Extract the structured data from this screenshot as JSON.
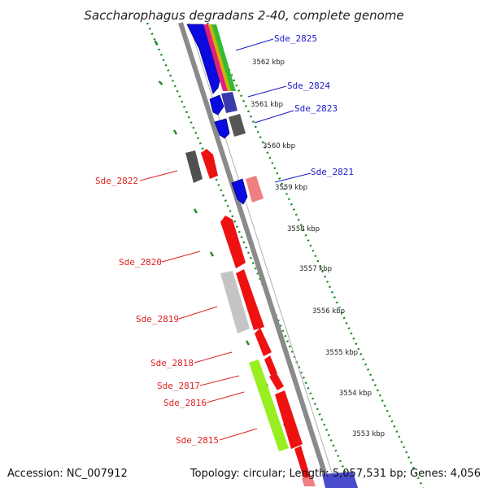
{
  "title": "Saccharophagus degradans 2-40, complete genome",
  "accession": "Accession: NC_007912",
  "summary": "Topology: circular; Length: 5,057,531 bp; Genes: 4,056",
  "colors": {
    "backbone": "#8a8a8a",
    "tick": "#1f8a1f",
    "forward_label": "#1a1acc",
    "reverse_label": "#dd2222"
  },
  "kbp_ticks": [
    "3562 kbp",
    "3561 kbp",
    "3560 kbp",
    "3559 kbp",
    "3558 kbp",
    "3557 kbp",
    "3556 kbp",
    "3555 kbp",
    "3554 kbp",
    "3553 kbp"
  ],
  "gene_labels": [
    {
      "text": "Sde_2825",
      "strand": "forward"
    },
    {
      "text": "Sde_2824",
      "strand": "forward"
    },
    {
      "text": "Sde_2823",
      "strand": "forward"
    },
    {
      "text": "Sde_2821",
      "strand": "forward"
    },
    {
      "text": "Sde_2822",
      "strand": "reverse"
    },
    {
      "text": "Sde_2820",
      "strand": "reverse"
    },
    {
      "text": "Sde_2819",
      "strand": "reverse"
    },
    {
      "text": "Sde_2818",
      "strand": "reverse"
    },
    {
      "text": "Sde_2817",
      "strand": "reverse"
    },
    {
      "text": "Sde_2816",
      "strand": "reverse"
    },
    {
      "text": "Sde_2815",
      "strand": "reverse"
    }
  ]
}
